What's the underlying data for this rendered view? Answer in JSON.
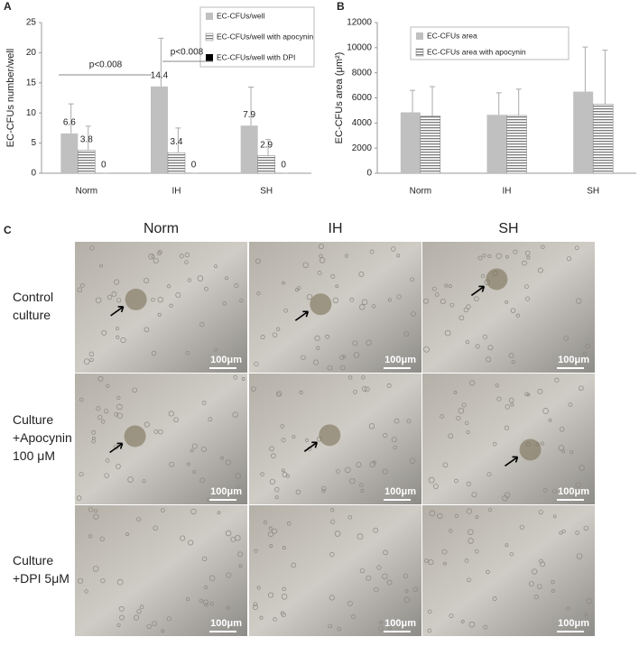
{
  "chart_data": [
    {
      "type": "bar",
      "panel_label": "A",
      "ylabel": "EC-CFUs number/well",
      "categories": [
        "Norm",
        "IH",
        "SH"
      ],
      "series": [
        {
          "name": "EC-CFUs/well",
          "color": "#c0c0c0",
          "fill": "solid",
          "values": [
            6.6,
            14.4,
            7.9
          ],
          "errors": [
            4.9,
            8.0,
            6.4
          ]
        },
        {
          "name": "EC-CFUs/well with apocynin",
          "color": "#7a7a7a",
          "fill": "horizontal-stripes",
          "values": [
            3.8,
            3.4,
            2.9
          ],
          "errors": [
            4.0,
            4.1,
            2.7
          ]
        },
        {
          "name": "EC-CFUs/well with DPI",
          "color": "#000000",
          "fill": "solid",
          "values": [
            0,
            0,
            0
          ],
          "errors": [
            0,
            0,
            0
          ]
        }
      ],
      "show_value_labels": true,
      "annotations": [
        "p<0.008",
        "p<0.008"
      ],
      "ylim": [
        0,
        25
      ],
      "yticks": [
        0,
        5,
        10,
        15,
        20,
        25
      ],
      "legend": "top-right",
      "grid": false
    },
    {
      "type": "bar",
      "panel_label": "B",
      "ylabel": "EC-CFUs area (μm²)",
      "categories": [
        "Norm",
        "IH",
        "SH"
      ],
      "series": [
        {
          "name": "EC-CFUs area",
          "color": "#c0c0c0",
          "fill": "solid",
          "values": [
            4850,
            4650,
            6500
          ],
          "errors": [
            1750,
            1750,
            3550
          ]
        },
        {
          "name": "EC-CFUs area with apocynin",
          "color": "#7a7a7a",
          "fill": "horizontal-stripes",
          "values": [
            4550,
            4600,
            5500
          ],
          "errors": [
            2350,
            2100,
            4300
          ]
        }
      ],
      "show_value_labels": false,
      "ylim": [
        0,
        12000
      ],
      "yticks": [
        0,
        2000,
        4000,
        6000,
        8000,
        10000,
        12000
      ],
      "legend": "top-left",
      "grid": false
    }
  ],
  "panel_c": {
    "label": "C",
    "columns": [
      "Norm",
      "IH",
      "SH"
    ],
    "rows": [
      [
        "Control",
        "culture"
      ],
      [
        "Culture",
        "+Apocynin",
        "100 μM"
      ],
      [
        "Culture",
        "+DPI 5μM"
      ]
    ],
    "scale_bar": "100μm"
  }
}
